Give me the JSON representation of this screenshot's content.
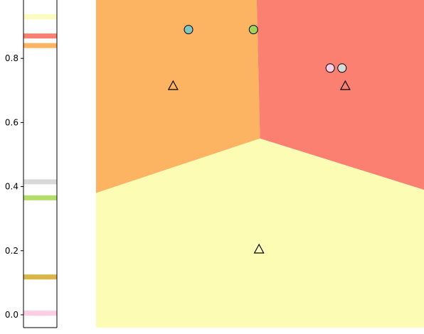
{
  "chart_data": [
    {
      "type": "strip",
      "ylim": [
        -0.04,
        1.0
      ],
      "yticks": [
        0.0,
        0.2,
        0.4,
        0.6,
        0.8
      ],
      "ytick_labels": [
        "0.0",
        "0.2",
        "0.4",
        "0.6",
        "0.8"
      ],
      "bands": [
        {
          "y": 0.93,
          "color": "#fcfcbf"
        },
        {
          "y": 0.87,
          "color": "#fb8072"
        },
        {
          "y": 0.84,
          "color": "#fdb462"
        },
        {
          "y": 0.415,
          "color": "#d9d9d9"
        },
        {
          "y": 0.365,
          "color": "#b3de69"
        },
        {
          "y": 0.118,
          "color": "#d9b548"
        },
        {
          "y": 0.005,
          "color": "#fccde5"
        }
      ]
    },
    {
      "type": "scatter",
      "xlim": [
        0.0,
        1.0
      ],
      "ylim": [
        -0.04,
        1.0
      ],
      "regions": [
        {
          "name": "orange",
          "color": "#fdb462"
        },
        {
          "name": "red",
          "color": "#fb8072"
        },
        {
          "name": "yellow",
          "color": "#fcfcb4"
        }
      ],
      "boundary": {
        "junction": [
          0.5,
          0.55
        ],
        "left": [
          0.0,
          0.38
        ],
        "right": [
          1.0,
          0.39
        ],
        "top": [
          0.49,
          1.0
        ]
      },
      "circles": [
        {
          "x": 0.282,
          "y": 0.89,
          "color": "#80c7c2"
        },
        {
          "x": 0.48,
          "y": 0.89,
          "color": "#a3d35c"
        },
        {
          "x": 0.714,
          "y": 0.77,
          "color": "#fccde5"
        },
        {
          "x": 0.75,
          "y": 0.77,
          "color": "#d9d9d9"
        }
      ],
      "triangles": [
        {
          "x": 0.235,
          "y": 0.715
        },
        {
          "x": 0.76,
          "y": 0.715
        },
        {
          "x": 0.497,
          "y": 0.205
        }
      ]
    }
  ]
}
